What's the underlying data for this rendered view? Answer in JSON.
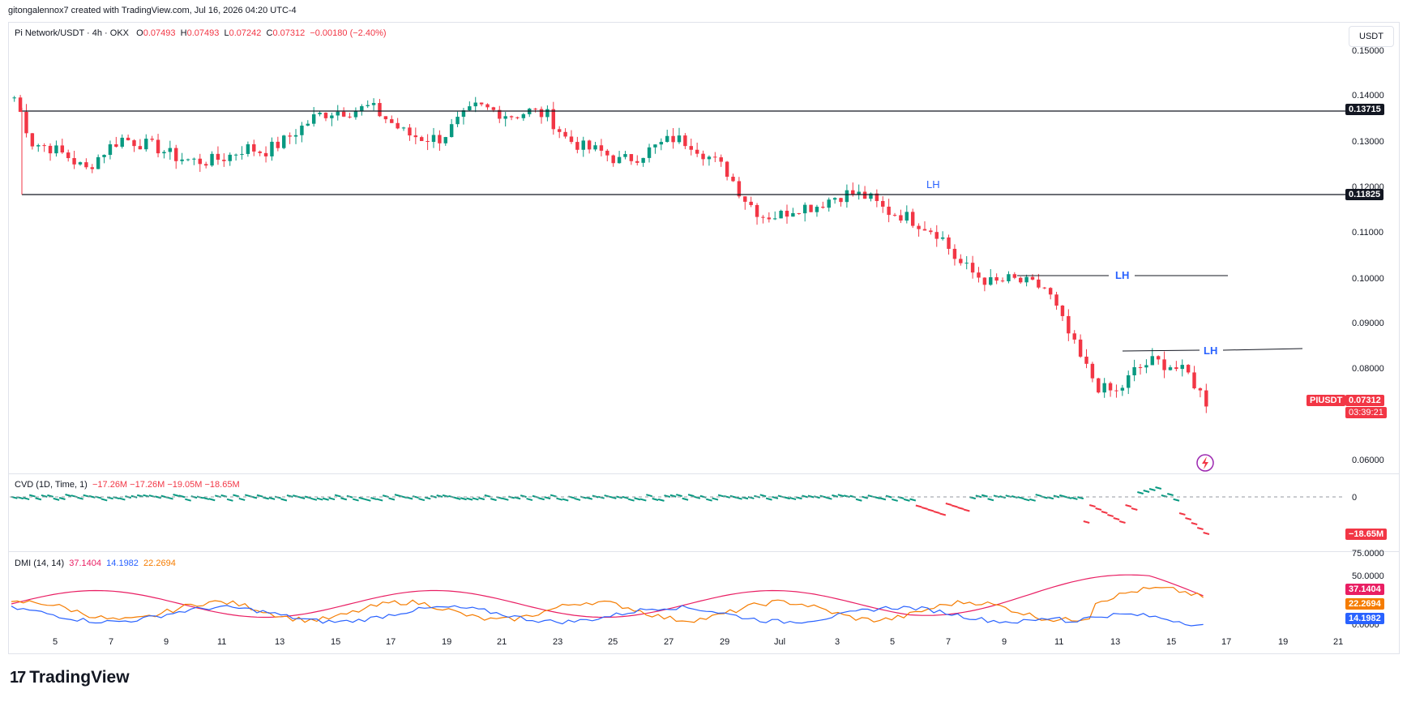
{
  "header": {
    "attribution": "gitongalennox7 created with TradingView.com, Jul 16, 2026 04:20 UTC-4"
  },
  "main_legend": {
    "symbol": "Pi Network/USDT · 4h · OKX",
    "o_label": "O",
    "o_value": "0.07493",
    "h_label": "H",
    "h_value": "0.07493",
    "l_label": "L",
    "l_value": "0.07242",
    "c_label": "C",
    "c_value": "0.07312",
    "change": "−0.00180 (−2.40%)"
  },
  "currency_button": "USDT",
  "cvd_legend": {
    "name": "CVD (1D, Time, 1)",
    "values": "−17.26M  −17.26M  −19.05M  −18.65M"
  },
  "dmi_legend": {
    "name": "DMI (14, 14)",
    "adx": "37.1404",
    "plus_di": "14.1982",
    "minus_di": "22.2694"
  },
  "price_axis": [
    "0.15000",
    "0.14000",
    "0.13000",
    "0.12000",
    "0.11000",
    "0.10000",
    "0.09000",
    "0.08000",
    "0.06000"
  ],
  "cvd_axis": [
    "0"
  ],
  "dmi_axis": [
    "75.0000",
    "50.0000",
    "0.0000"
  ],
  "time_axis": [
    "5",
    "7",
    "9",
    "11",
    "13",
    "15",
    "17",
    "19",
    "21",
    "23",
    "25",
    "27",
    "29",
    "Jul",
    "3",
    "5",
    "7",
    "9",
    "11",
    "13",
    "15",
    "17",
    "19",
    "21"
  ],
  "badges": {
    "level_high": "0.13715",
    "level_low": "0.11825",
    "symbol_tag": "PIUSDT",
    "last_price": "0.07312",
    "countdown": "03:39:21",
    "cvd_last": "−18.65M",
    "adx": "37.1404",
    "minus_di": "22.2694",
    "plus_di": "14.1982"
  },
  "annotations": [
    "LH",
    "LH",
    "LH"
  ],
  "branding": {
    "logo_text": "TradingView",
    "logo_mark": "17"
  },
  "colors": {
    "up": "#089981",
    "down": "#f23645",
    "adx": "#e91e63",
    "plus_di": "#2962ff",
    "minus_di": "#f57c00",
    "lh": "#2962ff"
  },
  "chart_data": {
    "type": "candlestick",
    "title": "Pi Network/USDT · 4h · OKX",
    "price_ylim": [
      0.058,
      0.155
    ],
    "horizontal_levels": [
      0.13715,
      0.11825
    ],
    "annotated_lower_highs": [
      {
        "label": "LH",
        "price": 0.1182,
        "date": "Jul 6"
      },
      {
        "label": "LH",
        "price": 0.1005,
        "date": "Jul 10"
      },
      {
        "label": "LH",
        "price": 0.084,
        "date": "Jul 15"
      }
    ],
    "price_path": [
      [
        0.14,
        0.13
      ],
      [
        0.129,
        0.127
      ],
      [
        0.124,
        0.128
      ],
      [
        0.131,
        0.13
      ],
      [
        0.129,
        0.127
      ],
      [
        0.126,
        0.126
      ],
      [
        0.127,
        0.129
      ],
      [
        0.128,
        0.13
      ],
      [
        0.133,
        0.136
      ],
      [
        0.137,
        0.137
      ],
      [
        0.138,
        0.135
      ],
      [
        0.132,
        0.131
      ],
      [
        0.131,
        0.135
      ],
      [
        0.138,
        0.137
      ],
      [
        0.136,
        0.137
      ],
      [
        0.136,
        0.131
      ],
      [
        0.129,
        0.128
      ],
      [
        0.126,
        0.127
      ],
      [
        0.129,
        0.131
      ],
      [
        0.13,
        0.127
      ],
      [
        0.124,
        0.118
      ],
      [
        0.114,
        0.114
      ],
      [
        0.116,
        0.116
      ],
      [
        0.118,
        0.119
      ],
      [
        0.118,
        0.115
      ],
      [
        0.114,
        0.112
      ],
      [
        0.11,
        0.104
      ],
      [
        0.101,
        0.099
      ],
      [
        0.1,
        0.099
      ],
      [
        0.098,
        0.09
      ],
      [
        0.082,
        0.076
      ],
      [
        0.075,
        0.08
      ],
      [
        0.082,
        0.081
      ],
      [
        0.079,
        0.073
      ]
    ],
    "cvd_last": -18.65,
    "dmi": {
      "adx": 37.1404,
      "plus_di": 14.1982,
      "minus_di": 22.2694,
      "ylim": [
        0,
        80
      ]
    }
  }
}
